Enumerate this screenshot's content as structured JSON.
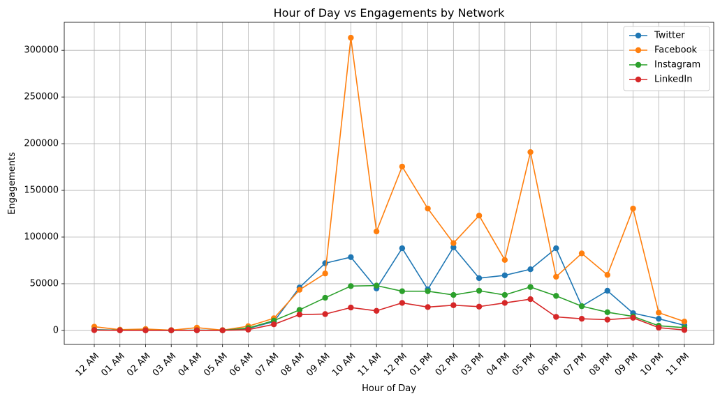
{
  "chart_data": {
    "type": "line",
    "title": "Hour of Day vs Engagements by Network",
    "xlabel": "Hour of Day",
    "ylabel": "Engagements",
    "ylim": [
      -15000,
      330000
    ],
    "yticks": [
      0,
      50000,
      100000,
      150000,
      200000,
      250000,
      300000
    ],
    "grid": true,
    "legend_position": "top-right",
    "categories": [
      "12 AM",
      "01 AM",
      "02 AM",
      "03 AM",
      "04 AM",
      "05 AM",
      "06 AM",
      "07 AM",
      "08 AM",
      "09 AM",
      "10 AM",
      "11 AM",
      "12 PM",
      "01 PM",
      "02 PM",
      "03 PM",
      "04 PM",
      "05 PM",
      "06 PM",
      "07 PM",
      "08 PM",
      "09 PM",
      "10 PM",
      "11 PM"
    ],
    "series": [
      {
        "name": "Twitter",
        "color": "#1f77b4",
        "values": [
          800,
          300,
          300,
          100,
          300,
          200,
          2000,
          9500,
          46000,
          72000,
          78500,
          45000,
          88000,
          44000,
          89000,
          56000,
          59000,
          65500,
          88000,
          26000,
          42500,
          18500,
          12500,
          5500
        ]
      },
      {
        "name": "Facebook",
        "color": "#ff7f0e",
        "values": [
          4000,
          800,
          1500,
          300,
          3000,
          300,
          4500,
          13000,
          43500,
          61000,
          313500,
          106000,
          175500,
          130500,
          93500,
          123000,
          75500,
          191000,
          57500,
          82500,
          59500,
          130500,
          19000,
          9500
        ]
      },
      {
        "name": "Instagram",
        "color": "#2ca02c",
        "values": [
          500,
          200,
          200,
          100,
          200,
          100,
          2500,
          10500,
          22000,
          35000,
          47500,
          48000,
          42000,
          42000,
          38000,
          42500,
          38000,
          46500,
          37000,
          26000,
          19500,
          15000,
          5000,
          3000
        ]
      },
      {
        "name": "LinkedIn",
        "color": "#d62728",
        "values": [
          300,
          100,
          100,
          100,
          100,
          100,
          800,
          6500,
          17000,
          17500,
          24500,
          21000,
          29500,
          25000,
          27000,
          25500,
          29500,
          33500,
          14500,
          12500,
          11500,
          13500,
          3000,
          500
        ]
      }
    ]
  }
}
